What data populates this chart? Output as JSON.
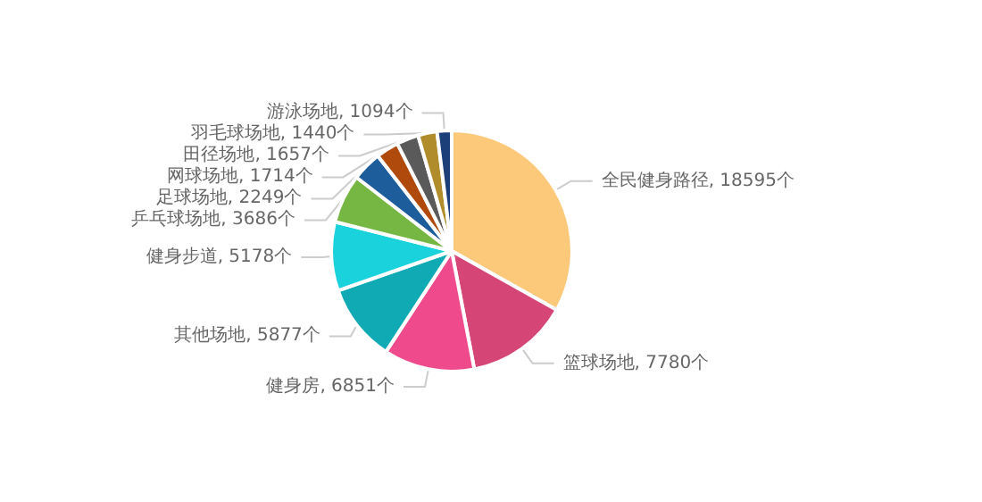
{
  "chart_data": {
    "type": "pie",
    "categories": [
      "全民健身路径",
      "篮球场地",
      "健身房",
      "其他场地",
      "健身步道",
      "乒乓球场地",
      "足球场地",
      "网球场地",
      "田径场地",
      "羽毛球场地",
      "游泳场地"
    ],
    "values": [
      18595,
      7780,
      6851,
      5877,
      5178,
      3686,
      2249,
      1714,
      1657,
      1440,
      1094
    ],
    "value_labels": [
      "18595个",
      "7780个",
      "6851个",
      "5877个",
      "5178个",
      "3686个",
      "2249个",
      "1714个",
      "1657个",
      "1440个",
      "1094个"
    ],
    "colors": [
      "#fcc97a",
      "#d54676",
      "#ee4a8c",
      "#10aab5",
      "#1ad2dc",
      "#76b743",
      "#1d5d9c",
      "#b04a0c",
      "#5a5a5a",
      "#b08d2a",
      "#1c3f7a"
    ],
    "legend": false
  }
}
